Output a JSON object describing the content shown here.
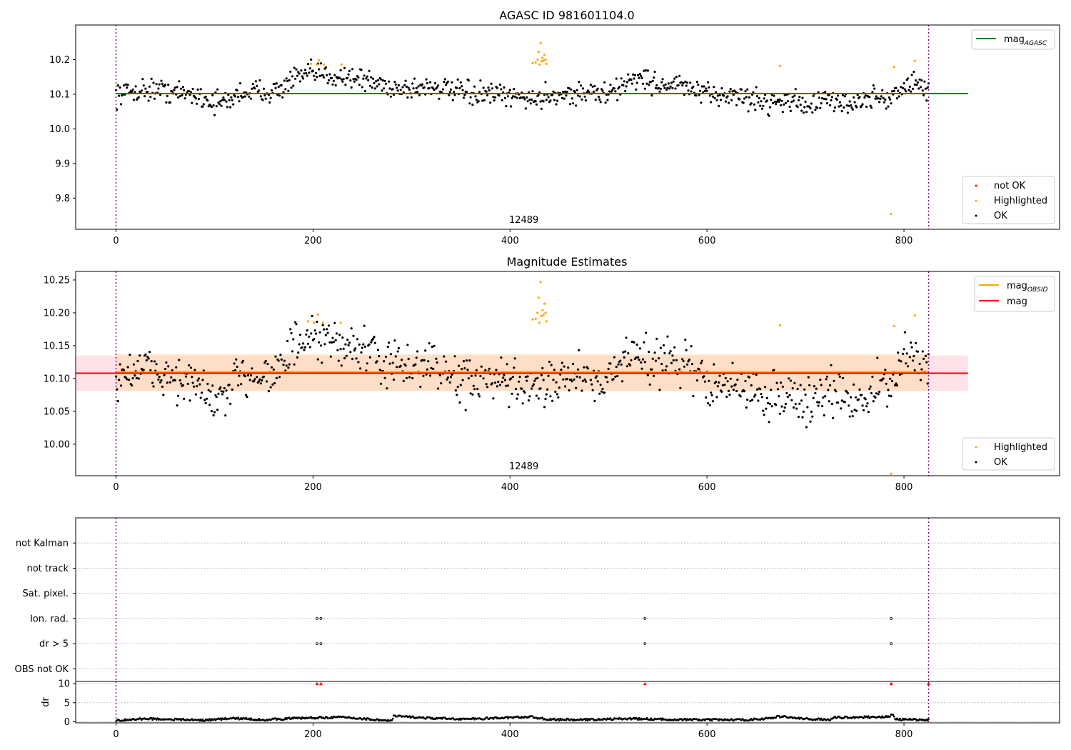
{
  "chart_data": [
    {
      "type": "scatter",
      "title": "AGASC ID 981601104.0",
      "xlim": [
        -41,
        958
      ],
      "ylim": [
        9.71,
        10.3
      ],
      "xticks": [
        0,
        200,
        400,
        600,
        800
      ],
      "yticks": [
        9.8,
        9.9,
        10.0,
        10.1,
        10.2
      ],
      "ytick_labels": [
        "9.8",
        "9.9",
        "10.0",
        "10.1",
        "10.2"
      ],
      "annotation": "12489",
      "annotation_x": 414,
      "vlines": [
        0,
        825
      ],
      "hline": {
        "name": "mag_AGASC",
        "label_main": "mag",
        "label_sub": "AGASC",
        "y": 10.102,
        "x_range": [
          0,
          865
        ],
        "color": "#008000"
      },
      "legend_top": [
        {
          "label_main": "mag",
          "label_sub": "AGASC",
          "color": "#008000",
          "kind": "line"
        }
      ],
      "legend_bottom": [
        {
          "label": "not OK",
          "color": "#ff0000",
          "kind": "dot"
        },
        {
          "label": "Highlighted",
          "color": "#ffa500",
          "kind": "dot"
        },
        {
          "label": "OK",
          "color": "#000000",
          "kind": "dot"
        }
      ],
      "highlighted_points": [
        [
          198,
          10.188
        ],
        [
          204,
          10.186
        ],
        [
          206,
          10.198
        ],
        [
          211,
          10.186
        ],
        [
          229,
          10.186
        ],
        [
          423,
          10.19
        ],
        [
          426,
          10.192
        ],
        [
          428,
          10.2
        ],
        [
          429,
          10.222
        ],
        [
          430,
          10.186
        ],
        [
          431,
          10.248
        ],
        [
          432,
          10.195
        ],
        [
          433,
          10.205
        ],
        [
          434,
          10.197
        ],
        [
          435,
          10.214
        ],
        [
          436,
          10.2
        ],
        [
          437,
          10.188
        ],
        [
          674,
          10.182
        ],
        [
          787,
          9.754
        ],
        [
          790,
          10.179
        ],
        [
          811,
          10.196
        ]
      ],
      "ok_trend": [
        [
          0,
          10.1
        ],
        [
          20,
          10.11
        ],
        [
          40,
          10.115
        ],
        [
          60,
          10.105
        ],
        [
          80,
          10.1
        ],
        [
          100,
          10.075
        ],
        [
          115,
          10.08
        ],
        [
          125,
          10.105
        ],
        [
          150,
          10.11
        ],
        [
          165,
          10.11
        ],
        [
          180,
          10.145
        ],
        [
          200,
          10.16
        ],
        [
          220,
          10.155
        ],
        [
          240,
          10.15
        ],
        [
          260,
          10.135
        ],
        [
          280,
          10.12
        ],
        [
          300,
          10.115
        ],
        [
          320,
          10.125
        ],
        [
          340,
          10.11
        ],
        [
          360,
          10.1
        ],
        [
          380,
          10.1
        ],
        [
          400,
          10.09
        ],
        [
          415,
          10.095
        ],
        [
          425,
          10.08
        ],
        [
          440,
          10.1
        ],
        [
          460,
          10.1
        ],
        [
          480,
          10.105
        ],
        [
          500,
          10.1
        ],
        [
          510,
          10.115
        ],
        [
          525,
          10.15
        ],
        [
          540,
          10.14
        ],
        [
          555,
          10.125
        ],
        [
          565,
          10.13
        ],
        [
          580,
          10.12
        ],
        [
          600,
          10.095
        ],
        [
          620,
          10.1
        ],
        [
          640,
          10.09
        ],
        [
          660,
          10.075
        ],
        [
          680,
          10.085
        ],
        [
          700,
          10.07
        ],
        [
          720,
          10.08
        ],
        [
          740,
          10.075
        ],
        [
          760,
          10.08
        ],
        [
          775,
          10.095
        ],
        [
          785,
          10.085
        ],
        [
          795,
          10.11
        ],
        [
          810,
          10.135
        ],
        [
          825,
          10.11
        ]
      ],
      "ok_spread": 0.016
    },
    {
      "type": "scatter",
      "title": "Magnitude Estimates",
      "xlim": [
        -41,
        958
      ],
      "ylim": [
        9.952,
        10.263
      ],
      "xticks": [
        0,
        200,
        400,
        600,
        800
      ],
      "yticks": [
        10.0,
        10.05,
        10.1,
        10.15,
        10.2,
        10.25
      ],
      "ytick_labels": [
        "10.00",
        "10.05",
        "10.10",
        "10.15",
        "10.20",
        "10.25"
      ],
      "annotation": "12489",
      "annotation_x": 414,
      "vlines": [
        0,
        825
      ],
      "band_mag": {
        "y0": 10.081,
        "y1": 10.135,
        "color": "#ffc0cb",
        "x_range": [
          -41,
          865
        ]
      },
      "band_obsid": {
        "y0": 10.081,
        "y1": 10.137,
        "color": "#ffdab0",
        "x_range": [
          0,
          825
        ]
      },
      "line_obsid": {
        "y": 10.11,
        "color": "#ffa500",
        "x_range": [
          0,
          825
        ]
      },
      "line_mag": {
        "y": 10.108,
        "color": "#ff0000",
        "x_range": [
          -41,
          865
        ]
      },
      "legend_top": [
        {
          "label_main": "mag",
          "label_sub": "OBSID",
          "color": "#ffa500",
          "kind": "line"
        },
        {
          "label_main": "mag",
          "label_sub": "",
          "color": "#ff0000",
          "kind": "line"
        }
      ],
      "legend_bottom": [
        {
          "label": "Highlighted",
          "color": "#ffa500",
          "kind": "dot"
        },
        {
          "label": "OK",
          "color": "#000000",
          "kind": "dot"
        }
      ],
      "highlighted_points": [
        [
          195,
          10.187
        ],
        [
          201,
          10.185
        ],
        [
          205,
          10.197
        ],
        [
          210,
          10.185
        ],
        [
          228,
          10.185
        ],
        [
          423,
          10.19
        ],
        [
          426,
          10.191
        ],
        [
          428,
          10.2
        ],
        [
          429,
          10.223
        ],
        [
          430,
          10.185
        ],
        [
          431,
          10.247
        ],
        [
          432,
          10.195
        ],
        [
          433,
          10.204
        ],
        [
          434,
          10.197
        ],
        [
          435,
          10.214
        ],
        [
          436,
          10.2
        ],
        [
          437,
          10.187
        ],
        [
          674,
          10.181
        ],
        [
          787,
          9.955
        ],
        [
          790,
          10.18
        ],
        [
          811,
          10.196
        ]
      ],
      "ok_trend": [
        [
          0,
          10.1
        ],
        [
          20,
          10.115
        ],
        [
          40,
          10.11
        ],
        [
          60,
          10.1
        ],
        [
          80,
          10.09
        ],
        [
          100,
          10.065
        ],
        [
          115,
          10.075
        ],
        [
          125,
          10.105
        ],
        [
          150,
          10.11
        ],
        [
          165,
          10.11
        ],
        [
          180,
          10.15
        ],
        [
          200,
          10.155
        ],
        [
          220,
          10.155
        ],
        [
          240,
          10.15
        ],
        [
          260,
          10.135
        ],
        [
          280,
          10.12
        ],
        [
          300,
          10.115
        ],
        [
          320,
          10.125
        ],
        [
          340,
          10.1
        ],
        [
          360,
          10.095
        ],
        [
          380,
          10.095
        ],
        [
          400,
          10.09
        ],
        [
          415,
          10.09
        ],
        [
          425,
          10.075
        ],
        [
          440,
          10.1
        ],
        [
          460,
          10.105
        ],
        [
          480,
          10.105
        ],
        [
          500,
          10.1
        ],
        [
          510,
          10.11
        ],
        [
          525,
          10.15
        ],
        [
          540,
          10.13
        ],
        [
          555,
          10.12
        ],
        [
          565,
          10.13
        ],
        [
          580,
          10.12
        ],
        [
          600,
          10.09
        ],
        [
          620,
          10.09
        ],
        [
          640,
          10.085
        ],
        [
          660,
          10.07
        ],
        [
          680,
          10.08
        ],
        [
          700,
          10.06
        ],
        [
          720,
          10.08
        ],
        [
          740,
          10.07
        ],
        [
          760,
          10.07
        ],
        [
          775,
          10.09
        ],
        [
          785,
          10.08
        ],
        [
          795,
          10.12
        ],
        [
          810,
          10.135
        ],
        [
          825,
          10.11
        ]
      ],
      "ok_spread": 0.017
    },
    {
      "type": "scatter",
      "title": "",
      "xlim": [
        -41,
        958
      ],
      "categories": [
        "not Kalman",
        "not track",
        "Sat. pixel.",
        "Ion. rad.",
        "dr > 5",
        "OBS not OK"
      ],
      "vlines": [
        0,
        825
      ],
      "flag_points": {
        "not Kalman": [],
        "not track": [],
        "Sat. pixel.": [],
        "Ion. rad.": [
          204,
          208,
          537,
          787
        ],
        "dr > 5": [
          204,
          208,
          537,
          787
        ],
        "OBS not OK": []
      }
    },
    {
      "type": "scatter",
      "title": "",
      "xlim": [
        -41,
        958
      ],
      "ylim": [
        -0.3,
        10.6
      ],
      "xticks": [
        0,
        200,
        400,
        600,
        800
      ],
      "yticks": [
        0,
        5,
        10
      ],
      "ytick_labels": [
        "0",
        "5",
        "10"
      ],
      "ylabel": "dr",
      "vlines": [
        0,
        825
      ],
      "clipped_points": [
        204,
        208,
        537,
        787,
        825
      ],
      "dr_trend": [
        [
          0,
          0.3
        ],
        [
          30,
          0.8
        ],
        [
          60,
          0.6
        ],
        [
          90,
          0.4
        ],
        [
          120,
          0.9
        ],
        [
          150,
          0.5
        ],
        [
          180,
          0.9
        ],
        [
          230,
          1.2
        ],
        [
          260,
          0.6
        ],
        [
          280,
          0.2
        ],
        [
          282,
          1.5
        ],
        [
          320,
          0.9
        ],
        [
          360,
          0.7
        ],
        [
          420,
          1.3
        ],
        [
          440,
          0.6
        ],
        [
          470,
          0.5
        ],
        [
          520,
          0.8
        ],
        [
          560,
          0.6
        ],
        [
          600,
          0.5
        ],
        [
          640,
          0.5
        ],
        [
          660,
          0.8
        ],
        [
          675,
          1.4
        ],
        [
          700,
          0.7
        ],
        [
          725,
          0.6
        ],
        [
          730,
          1.1
        ],
        [
          785,
          1.3
        ],
        [
          788,
          1.9
        ],
        [
          792,
          0.6
        ],
        [
          825,
          0.5
        ]
      ]
    }
  ]
}
